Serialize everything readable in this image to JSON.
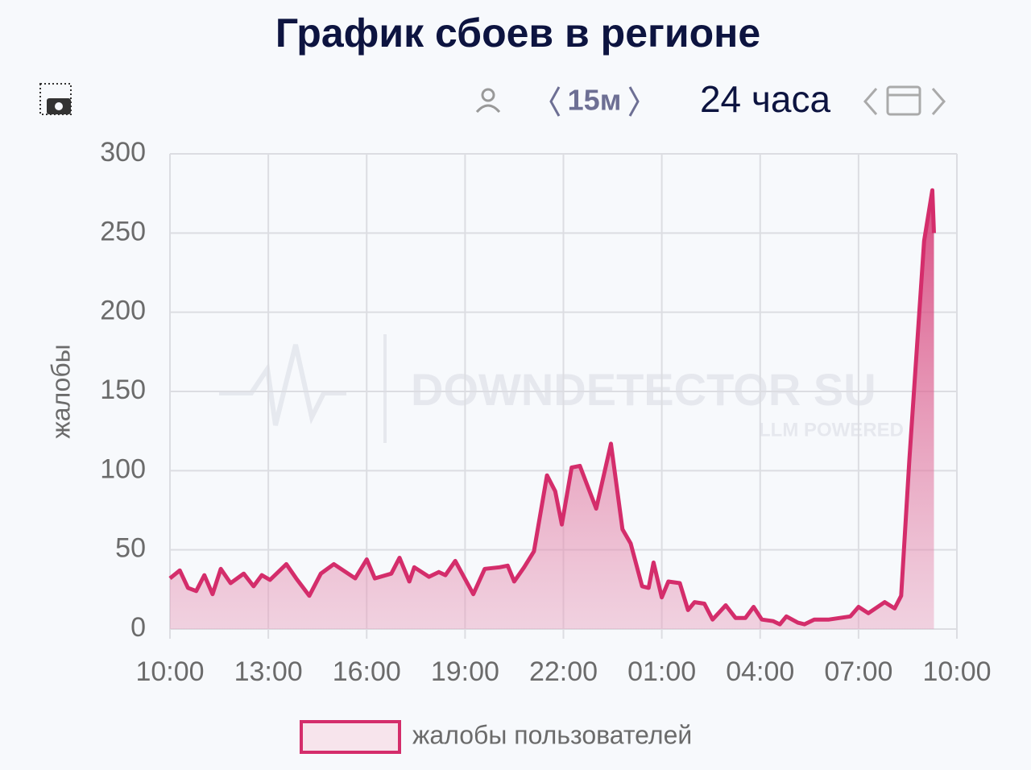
{
  "header": {
    "title": "График сбоев в регионе",
    "interval": "15м",
    "range": "24 часа"
  },
  "watermark": {
    "brand": "DOWNDETECTOR SU",
    "tagline": "LLM POWERED"
  },
  "chart_data": {
    "type": "area",
    "y_label": "жалобы",
    "x": [
      0,
      0.3,
      0.55,
      0.8,
      1.05,
      1.3,
      1.55,
      1.85,
      2.25,
      2.55,
      2.8,
      3.05,
      3.55,
      3.85,
      4.25,
      4.6,
      5.0,
      5.65,
      6.0,
      6.25,
      6.75,
      7.0,
      7.3,
      7.45,
      7.9,
      8.2,
      8.4,
      8.7,
      9.25,
      9.6,
      10.05,
      10.3,
      10.5,
      10.8,
      11.1,
      11.5,
      11.75,
      11.95,
      12.25,
      12.5,
      13.0,
      13.45,
      13.8,
      14.05,
      14.4,
      14.6,
      14.75,
      15.0,
      15.2,
      15.55,
      15.8,
      16.0,
      16.3,
      16.55,
      16.95,
      17.25,
      17.55,
      17.8,
      18.05,
      18.4,
      18.6,
      18.8,
      19.15,
      19.35,
      19.65,
      20.1,
      20.75,
      21.0,
      21.3,
      21.8,
      22.1,
      22.3,
      22.55,
      23.0,
      23.25,
      23.3
    ],
    "series": [
      {
        "name": "жалобы пользователей",
        "color": "#d42d6b",
        "values": [
          32,
          37,
          26,
          24,
          34,
          22,
          38,
          29,
          35,
          27,
          34,
          31,
          41,
          32,
          21,
          35,
          41,
          32,
          44,
          32,
          35,
          45,
          30,
          39,
          33,
          36,
          34,
          43,
          22,
          38,
          39,
          40,
          30,
          39,
          49,
          97,
          87,
          66,
          102,
          103,
          76,
          117,
          63,
          54,
          27,
          26,
          42,
          20,
          30,
          29,
          12,
          17,
          16,
          6,
          15,
          7,
          7,
          14,
          6,
          5,
          3,
          8,
          4,
          3,
          6,
          6,
          8,
          14,
          10,
          17,
          13,
          21,
          107,
          245,
          277,
          250
        ]
      }
    ],
    "xlim": [
      0,
      24
    ],
    "xticks": [
      {
        "value": 0,
        "label": "10:00"
      },
      {
        "value": 3,
        "label": "13:00"
      },
      {
        "value": 6,
        "label": "16:00"
      },
      {
        "value": 9,
        "label": "19:00"
      },
      {
        "value": 12,
        "label": "22:00"
      },
      {
        "value": 15,
        "label": "01:00"
      },
      {
        "value": 18,
        "label": "04:00"
      },
      {
        "value": 21,
        "label": "07:00"
      },
      {
        "value": 24,
        "label": "10:00"
      }
    ],
    "ylim": [
      0,
      300
    ],
    "yticks": [
      0,
      50,
      100,
      150,
      200,
      250,
      300
    ],
    "grid": true
  }
}
